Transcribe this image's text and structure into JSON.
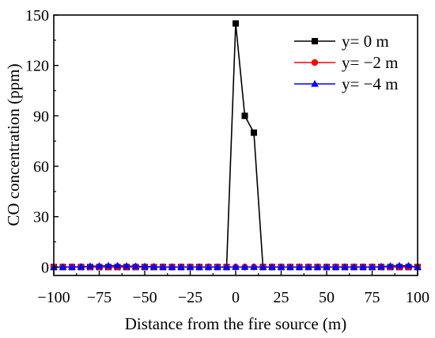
{
  "chart_data": {
    "type": "line",
    "title": "",
    "xlabel": "Distance from the fire source (m)",
    "ylabel": "CO concentration (ppm)",
    "xlim": [
      -100,
      100
    ],
    "ylim": [
      -5,
      150
    ],
    "xticks": [
      -100,
      -75,
      -50,
      -25,
      0,
      25,
      50,
      75,
      100
    ],
    "xtick_labels": [
      "−100",
      "−75",
      "−50",
      "−25",
      "0",
      "25",
      "50",
      "75",
      "100"
    ],
    "yticks": [
      0,
      30,
      60,
      90,
      120,
      150
    ],
    "ytick_labels": [
      "0",
      "30",
      "60",
      "90",
      "120",
      "150"
    ],
    "grid": false,
    "legend_position": "top-right",
    "x": [
      -100,
      -95,
      -90,
      -85,
      -80,
      -75,
      -70,
      -65,
      -60,
      -55,
      -50,
      -45,
      -40,
      -35,
      -30,
      -25,
      -20,
      -15,
      -10,
      -5,
      0,
      5,
      10,
      15,
      20,
      25,
      30,
      35,
      40,
      45,
      50,
      55,
      60,
      65,
      70,
      75,
      80,
      85,
      90,
      95,
      100
    ],
    "series": [
      {
        "name": "y= 0 m",
        "color": "#000000",
        "marker": "square",
        "values": [
          0,
          0,
          0,
          0,
          0,
          0,
          0,
          0,
          0,
          0,
          0,
          0,
          0,
          0,
          0,
          0,
          0,
          0,
          0,
          0,
          145,
          90,
          80,
          0,
          0,
          0,
          0,
          0,
          0,
          0,
          0,
          0,
          0,
          0,
          0,
          0,
          0,
          0,
          0,
          0,
          0
        ]
      },
      {
        "name": "y= −2 m",
        "color": "#ff0000",
        "marker": "circle",
        "values": [
          0,
          0,
          0,
          0,
          0,
          0,
          0,
          0,
          0,
          0,
          0,
          0,
          0,
          0,
          0,
          0,
          0,
          0,
          0,
          0,
          0,
          0,
          0,
          0,
          0,
          0,
          0,
          0,
          0,
          0,
          0,
          0,
          0,
          0,
          0,
          0,
          0,
          0,
          0,
          0,
          0
        ]
      },
      {
        "name": "y= −4 m",
        "color": "#0000ff",
        "marker": "triangle",
        "values": [
          0,
          0,
          0,
          0.2,
          0.5,
          0.6,
          0.8,
          0.8,
          0.6,
          0.5,
          0.3,
          0.2,
          0,
          0,
          0,
          0,
          0,
          0,
          0,
          0,
          0,
          0,
          0,
          0,
          0,
          0,
          0,
          0,
          0,
          0,
          0,
          0,
          0,
          0,
          0,
          0,
          0.3,
          0.6,
          0.8,
          0.8,
          0
        ]
      }
    ]
  }
}
